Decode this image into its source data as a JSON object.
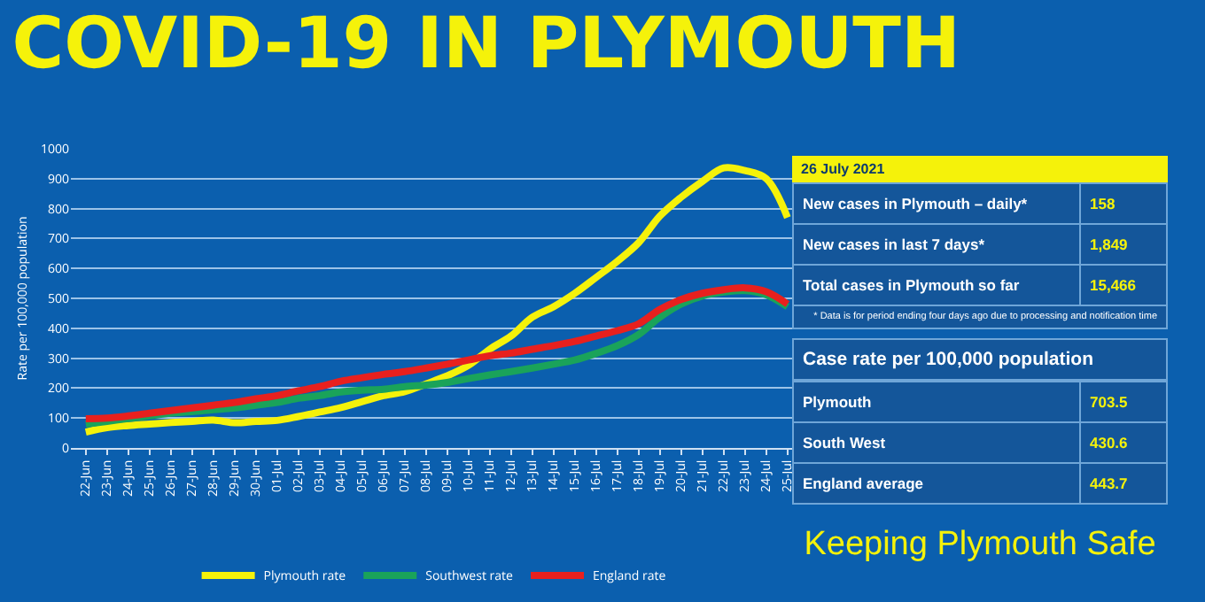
{
  "chart_data": [
    {
      "type": "line",
      "title": "COVID-19 IN PLYMOUTH",
      "ylabel": "Rate per 100,000 population",
      "categories": [
        "22-Jun",
        "23-Jun",
        "24-Jun",
        "25-Jun",
        "26-Jun",
        "27-Jun",
        "28-Jun",
        "29-Jun",
        "30-Jun",
        "01-Jul",
        "02-Jul",
        "03-Jul",
        "04-Jul",
        "05-Jul",
        "06-Jul",
        "07-Jul",
        "08-Jul",
        "09-Jul",
        "10-Jul",
        "11-Jul",
        "12-Jul",
        "13-Jul",
        "14-Jul",
        "15-Jul",
        "16-Jul",
        "17-Jul",
        "18-Jul",
        "19-Jul",
        "20-Jul",
        "21-Jul",
        "22-Jul",
        "23-Jul",
        "24-Jul",
        "25-Jul"
      ],
      "series": [
        {
          "name": "Plymouth rate",
          "color": "#f5f20a",
          "values": [
            53,
            68,
            75,
            80,
            85,
            89,
            93,
            84,
            89,
            92,
            105,
            120,
            135,
            155,
            175,
            188,
            214,
            241,
            276,
            330,
            374,
            437,
            472,
            517,
            570,
            624,
            686,
            775,
            838,
            891,
            936,
            927,
            900,
            770
          ]
        },
        {
          "name": "Southwest rate",
          "color": "#1aa35a",
          "values": [
            80,
            89,
            98,
            107,
            116,
            121,
            128,
            134,
            143,
            152,
            166,
            175,
            187,
            193,
            196,
            205,
            210,
            219,
            232,
            244,
            255,
            267,
            280,
            294,
            316,
            342,
            379,
            437,
            481,
            508,
            521,
            526,
            512,
            472
          ]
        },
        {
          "name": "England rate",
          "color": "#e8201e",
          "values": [
            98,
            100,
            107,
            116,
            125,
            134,
            143,
            152,
            164,
            175,
            191,
            205,
            223,
            235,
            246,
            255,
            267,
            280,
            294,
            308,
            317,
            330,
            342,
            356,
            374,
            392,
            415,
            463,
            496,
            517,
            529,
            535,
            522,
            481
          ]
        }
      ],
      "ylim": [
        0,
        1000
      ],
      "yticks": [
        0,
        100,
        200,
        300,
        400,
        500,
        600,
        700,
        800,
        900,
        1000
      ],
      "grid": "y",
      "legend": "bottom"
    },
    {
      "type": "other",
      "title": "26 July 2021",
      "categories": [
        "New cases in Plymouth – daily*",
        "New cases in last 7 days*",
        "Total cases in Plymouth so far"
      ],
      "value_labels": [
        "158",
        "1,849",
        "15,466"
      ],
      "annotations": [
        "* Data is for period ending four days ago due to processing and notification time"
      ]
    },
    {
      "type": "other",
      "title": "Case rate per 100,000 population",
      "categories": [
        "Plymouth",
        "South West",
        "England average"
      ],
      "value_labels": [
        "703.5",
        "430.6",
        "443.7"
      ],
      "annotations": [
        "Keeping Plymouth Safe"
      ]
    }
  ]
}
